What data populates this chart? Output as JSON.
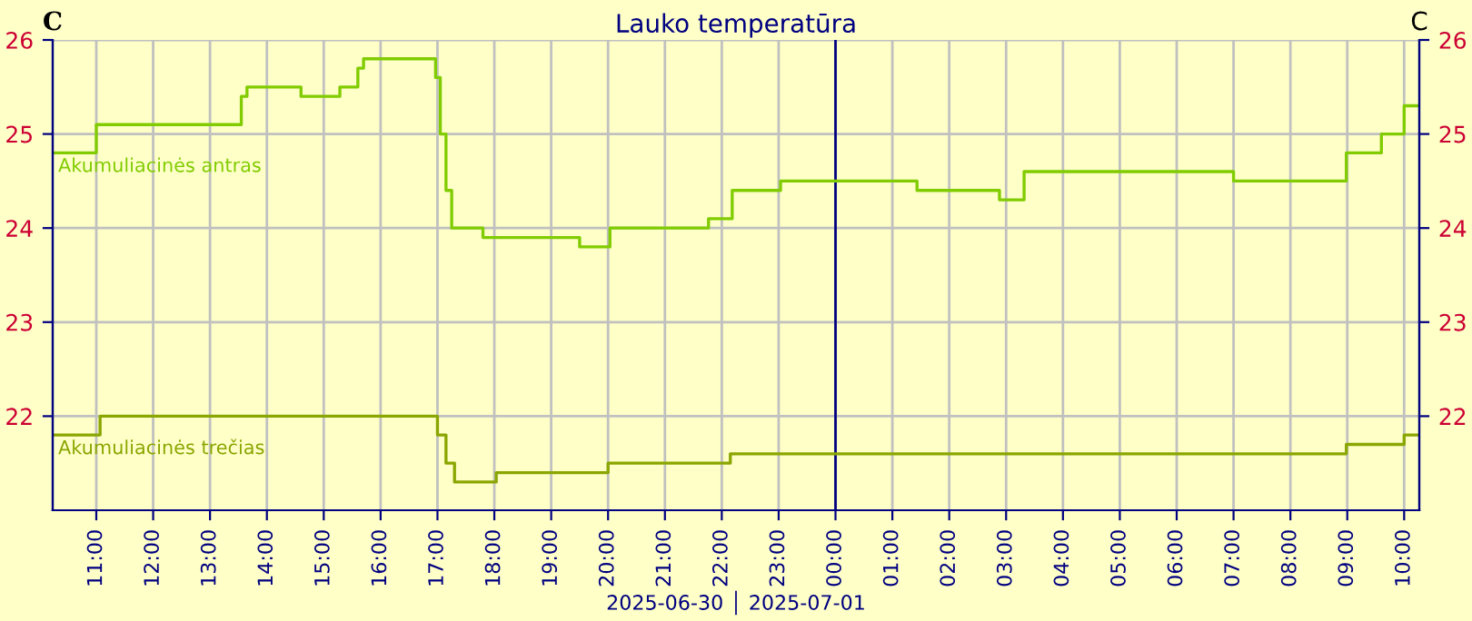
{
  "chart_data": {
    "type": "step",
    "title": "Lauko temperatūra",
    "ylabel": "C",
    "y2label": "C",
    "annotations": [
      "2025-06-30 │ 2025-07-01"
    ],
    "series": [
      {
        "name": "Akumuliacinės antras",
        "color": "#80cc00",
        "x": [
          "2025-06-30T10:14",
          "2025-06-30T11:00",
          "2025-06-30T13:33",
          "2025-06-30T13:39",
          "2025-06-30T14:36",
          "2025-06-30T15:17",
          "2025-06-30T15:36",
          "2025-06-30T15:42",
          "2025-06-30T16:58",
          "2025-06-30T17:03",
          "2025-06-30T17:09",
          "2025-06-30T17:15",
          "2025-06-30T17:48",
          "2025-06-30T19:30",
          "2025-06-30T20:02",
          "2025-06-30T21:46",
          "2025-06-30T22:11",
          "2025-06-30T23:02",
          "2025-07-01T01:26",
          "2025-07-01T02:53",
          "2025-07-01T03:19",
          "2025-07-01T07:00",
          "2025-07-01T08:59",
          "2025-07-01T09:36",
          "2025-07-01T10:00",
          "2025-07-01T10:16"
        ],
        "values": [
          24.8,
          25.1,
          25.4,
          25.5,
          25.4,
          25.5,
          25.7,
          25.8,
          25.6,
          25.0,
          24.4,
          24.0,
          23.9,
          23.8,
          24.0,
          24.1,
          24.4,
          24.5,
          24.4,
          24.3,
          24.6,
          24.5,
          24.8,
          25.0,
          25.3,
          25.3
        ]
      },
      {
        "name": "Akumuliacinės trečias",
        "color": "#8aa600",
        "x": [
          "2025-06-30T10:14",
          "2025-06-30T11:04",
          "2025-06-30T17:00",
          "2025-06-30T17:09",
          "2025-06-30T17:18",
          "2025-06-30T18:02",
          "2025-06-30T20:00",
          "2025-06-30T22:09",
          "2025-07-01T08:59",
          "2025-07-01T10:00",
          "2025-07-01T10:16"
        ],
        "values": [
          21.8,
          22.0,
          21.8,
          21.5,
          21.3,
          21.4,
          21.5,
          21.6,
          21.7,
          21.8,
          21.8
        ]
      }
    ],
    "xlim": [
      "2025-06-30T10:14",
      "2025-07-01T10:16"
    ],
    "xticks": [
      {
        "value": "2025-06-30T11:00",
        "label": "11:00"
      },
      {
        "value": "2025-06-30T12:00",
        "label": "12:00"
      },
      {
        "value": "2025-06-30T13:00",
        "label": "13:00"
      },
      {
        "value": "2025-06-30T14:00",
        "label": "14:00"
      },
      {
        "value": "2025-06-30T15:00",
        "label": "15:00"
      },
      {
        "value": "2025-06-30T16:00",
        "label": "16:00"
      },
      {
        "value": "2025-06-30T17:00",
        "label": "17:00"
      },
      {
        "value": "2025-06-30T18:00",
        "label": "18:00"
      },
      {
        "value": "2025-06-30T19:00",
        "label": "19:00"
      },
      {
        "value": "2025-06-30T20:00",
        "label": "20:00"
      },
      {
        "value": "2025-06-30T21:00",
        "label": "21:00"
      },
      {
        "value": "2025-06-30T22:00",
        "label": "22:00"
      },
      {
        "value": "2025-06-30T23:00",
        "label": "23:00"
      },
      {
        "value": "2025-07-01T00:00",
        "label": "00:00"
      },
      {
        "value": "2025-07-01T01:00",
        "label": "01:00"
      },
      {
        "value": "2025-07-01T02:00",
        "label": "02:00"
      },
      {
        "value": "2025-07-01T03:00",
        "label": "03:00"
      },
      {
        "value": "2025-07-01T04:00",
        "label": "04:00"
      },
      {
        "value": "2025-07-01T05:00",
        "label": "05:00"
      },
      {
        "value": "2025-07-01T06:00",
        "label": "06:00"
      },
      {
        "value": "2025-07-01T07:00",
        "label": "07:00"
      },
      {
        "value": "2025-07-01T08:00",
        "label": "08:00"
      },
      {
        "value": "2025-07-01T09:00",
        "label": "09:00"
      },
      {
        "value": "2025-07-01T10:00",
        "label": "10:00"
      }
    ],
    "ylim": [
      21.0,
      26
    ],
    "yticks": [
      22,
      23,
      24,
      25,
      26
    ],
    "y2lim": [
      21.0,
      26
    ],
    "y2ticks": [
      22,
      23,
      24,
      25,
      26
    ],
    "ref_lines": [
      {
        "axis": "x",
        "value": "2025-07-01T00:00",
        "color": "#000080"
      }
    ],
    "grid": true,
    "legend": false,
    "line_style": "solid"
  }
}
